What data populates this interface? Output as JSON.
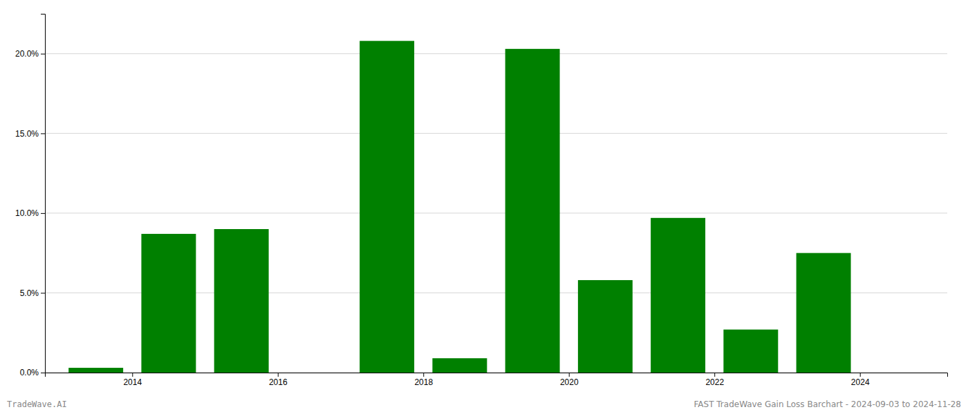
{
  "chart_data": {
    "type": "bar",
    "x": [
      2013,
      2014,
      2015,
      2016,
      2017,
      2018,
      2019,
      2020,
      2021,
      2022,
      2023,
      2024
    ],
    "values": [
      0.003,
      0.087,
      0.09,
      0.0,
      0.208,
      0.009,
      0.203,
      0.058,
      0.097,
      0.027,
      0.075,
      0.0
    ],
    "color": "#008000",
    "xlim": [
      2012.3,
      2024.7
    ],
    "xticks": [
      {
        "value": 2013.5,
        "label": "2014"
      },
      {
        "value": 2015.5,
        "label": "2016"
      },
      {
        "value": 2017.5,
        "label": "2018"
      },
      {
        "value": 2019.5,
        "label": "2020"
      },
      {
        "value": 2021.5,
        "label": "2022"
      },
      {
        "value": 2023.5,
        "label": "2024"
      }
    ],
    "ylim": [
      0,
      0.225
    ],
    "yticks": [
      {
        "value": 0.0,
        "label": "0.0%"
      },
      {
        "value": 0.05,
        "label": "5.0%"
      },
      {
        "value": 0.1,
        "label": "10.0%"
      },
      {
        "value": 0.15,
        "label": "15.0%"
      },
      {
        "value": 0.2,
        "label": "20.0%"
      }
    ],
    "grid": true,
    "annotations": [
      "TradeWave.AI",
      "FAST TradeWave Gain Loss Barchart - 2024-09-03 to 2024-11-28"
    ]
  }
}
